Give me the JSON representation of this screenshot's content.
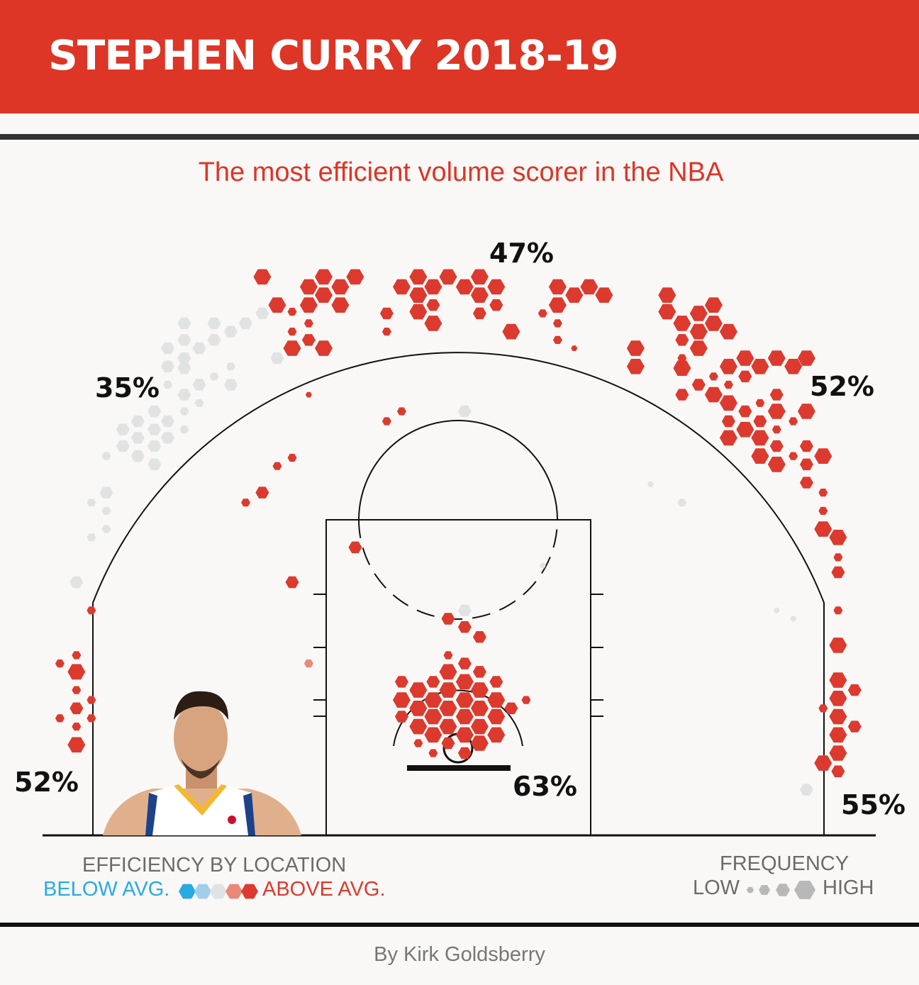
{
  "header": {
    "title": "STEPHEN CURRY 2018-19"
  },
  "subtitle": "The most efficient volume scorer in the NBA",
  "byline": "By Kirk Goldsberry",
  "legend": {
    "efficiency_title": "EFFICIENCY BY LOCATION",
    "below_label": "BELOW AVG.",
    "above_label": "ABOVE AVG.",
    "frequency_title": "FREQUENCY",
    "low_label": "LOW",
    "high_label": "HIGH"
  },
  "colors": {
    "header": "#dd3526",
    "below": "#29abe2",
    "slightly_below": "#a3cdec",
    "average": "#e1e3e3",
    "slightly_above": "#e8897a",
    "above": "#dc3a2e",
    "frequency": "#b8b8b8"
  },
  "chart_data": {
    "type": "hexbin-shot-chart",
    "units": "feet from basket (x: left/right, y: toward half court)",
    "size_scale": "1=low frequency ... 4=high frequency",
    "zone_labels": [
      {
        "zone": "top-of-key three",
        "value": "47%"
      },
      {
        "zone": "left wing three",
        "value": "35%"
      },
      {
        "zone": "right wing three",
        "value": "52%"
      },
      {
        "zone": "left corner three",
        "value": "52%"
      },
      {
        "zone": "restricted area",
        "value": "63%"
      },
      {
        "zone": "right corner three",
        "value": "55%"
      }
    ],
    "hexes": [
      [
        -11.8,
        28.4,
        4,
        "above"
      ],
      [
        -9.0,
        27.8,
        4,
        "above"
      ],
      [
        -8.1,
        28.4,
        4,
        "above"
      ],
      [
        -7.1,
        27.8,
        4,
        "above"
      ],
      [
        -6.2,
        28.4,
        4,
        "above"
      ],
      [
        -8.1,
        27.3,
        4,
        "above"
      ],
      [
        -9.0,
        26.7,
        4,
        "above"
      ],
      [
        -7.1,
        26.7,
        4,
        "above"
      ],
      [
        -10.9,
        26.7,
        4,
        "above"
      ],
      [
        -10.0,
        26.3,
        2,
        "above"
      ],
      [
        -9.0,
        25.6,
        2,
        "above"
      ],
      [
        -10.0,
        25.1,
        2,
        "above"
      ],
      [
        -9.0,
        24.6,
        3,
        "above"
      ],
      [
        -10.0,
        24.1,
        4,
        "above"
      ],
      [
        -8.1,
        24.1,
        4,
        "above"
      ],
      [
        -9.0,
        21.3,
        1,
        "above"
      ],
      [
        -3.4,
        27.8,
        4,
        "above"
      ],
      [
        -2.4,
        28.4,
        4,
        "above"
      ],
      [
        -1.5,
        27.8,
        4,
        "above"
      ],
      [
        -0.6,
        28.4,
        4,
        "above"
      ],
      [
        0.4,
        27.8,
        4,
        "above"
      ],
      [
        1.3,
        28.4,
        4,
        "above"
      ],
      [
        2.3,
        27.8,
        4,
        "above"
      ],
      [
        -2.4,
        27.3,
        4,
        "above"
      ],
      [
        -1.5,
        26.7,
        3,
        "above"
      ],
      [
        -2.4,
        26.3,
        4,
        "above"
      ],
      [
        -1.5,
        25.6,
        4,
        "above"
      ],
      [
        1.3,
        27.3,
        4,
        "above"
      ],
      [
        2.3,
        26.7,
        3,
        "above"
      ],
      [
        1.3,
        26.2,
        3,
        "above"
      ],
      [
        -4.3,
        26.2,
        3,
        "above"
      ],
      [
        -4.3,
        25.1,
        2,
        "above"
      ],
      [
        3.2,
        25.1,
        4,
        "above"
      ],
      [
        6.0,
        27.8,
        4,
        "above"
      ],
      [
        7.0,
        27.3,
        4,
        "above"
      ],
      [
        7.9,
        27.8,
        4,
        "above"
      ],
      [
        8.8,
        27.3,
        4,
        "above"
      ],
      [
        6.0,
        26.7,
        4,
        "above"
      ],
      [
        5.1,
        26.2,
        2,
        "above"
      ],
      [
        6.0,
        25.6,
        2,
        "above"
      ],
      [
        6.0,
        24.6,
        2,
        "above"
      ],
      [
        7.0,
        24.1,
        1,
        "above"
      ],
      [
        12.6,
        27.3,
        4,
        "above"
      ],
      [
        12.6,
        26.3,
        4,
        "above"
      ],
      [
        13.5,
        25.6,
        4,
        "above"
      ],
      [
        14.5,
        26.2,
        4,
        "above"
      ],
      [
        15.4,
        26.7,
        4,
        "above"
      ],
      [
        15.4,
        25.6,
        4,
        "above"
      ],
      [
        16.3,
        25.1,
        4,
        "above"
      ],
      [
        14.5,
        25.1,
        4,
        "above"
      ],
      [
        13.5,
        24.6,
        3,
        "above"
      ],
      [
        14.5,
        24.1,
        4,
        "above"
      ],
      [
        10.7,
        24.1,
        4,
        "above"
      ],
      [
        10.7,
        23.0,
        4,
        "above"
      ],
      [
        13.5,
        23.5,
        2,
        "above"
      ],
      [
        13.5,
        22.9,
        4,
        "above"
      ],
      [
        14.5,
        21.9,
        3,
        "above"
      ],
      [
        13.5,
        21.3,
        3,
        "above"
      ],
      [
        15.4,
        22.4,
        2,
        "above"
      ],
      [
        15.4,
        21.3,
        4,
        "above"
      ],
      [
        16.3,
        23.0,
        4,
        "above"
      ],
      [
        17.3,
        23.5,
        4,
        "above"
      ],
      [
        18.2,
        23.0,
        4,
        "above"
      ],
      [
        19.2,
        23.5,
        4,
        "above"
      ],
      [
        20.2,
        23.0,
        4,
        "above"
      ],
      [
        21.0,
        23.5,
        4,
        "above"
      ],
      [
        17.3,
        22.4,
        3,
        "above"
      ],
      [
        16.3,
        21.9,
        2,
        "above"
      ],
      [
        16.3,
        20.8,
        4,
        "above"
      ],
      [
        17.3,
        20.3,
        3,
        "above"
      ],
      [
        18.2,
        20.8,
        2,
        "above"
      ],
      [
        19.2,
        21.3,
        3,
        "above"
      ],
      [
        19.2,
        20.3,
        4,
        "above"
      ],
      [
        21.0,
        20.3,
        4,
        "above"
      ],
      [
        16.3,
        19.7,
        3,
        "above"
      ],
      [
        17.3,
        19.2,
        4,
        "above"
      ],
      [
        18.2,
        19.7,
        3,
        "above"
      ],
      [
        19.2,
        19.2,
        2,
        "above"
      ],
      [
        20.2,
        19.7,
        2,
        "above"
      ],
      [
        16.3,
        18.7,
        4,
        "above"
      ],
      [
        18.2,
        18.7,
        4,
        "above"
      ],
      [
        19.2,
        18.2,
        3,
        "above"
      ],
      [
        18.2,
        17.6,
        4,
        "above"
      ],
      [
        19.2,
        17.1,
        4,
        "above"
      ],
      [
        20.2,
        17.6,
        2,
        "above"
      ],
      [
        21.0,
        18.2,
        3,
        "above"
      ],
      [
        22.0,
        17.6,
        4,
        "above"
      ],
      [
        21.0,
        17.1,
        3,
        "above"
      ],
      [
        21.0,
        16.0,
        3,
        "above"
      ],
      [
        22.0,
        15.4,
        2,
        "above"
      ],
      [
        22.0,
        14.3,
        2,
        "above"
      ],
      [
        22.0,
        13.2,
        4,
        "above"
      ],
      [
        22.9,
        12.7,
        4,
        "above"
      ],
      [
        22.9,
        11.5,
        2,
        "above"
      ],
      [
        22.9,
        10.6,
        3,
        "above"
      ],
      [
        22.9,
        8.3,
        2,
        "above"
      ],
      [
        22.9,
        6.2,
        4,
        "above"
      ],
      [
        22.9,
        4.1,
        4,
        "above"
      ],
      [
        23.9,
        3.5,
        3,
        "above"
      ],
      [
        22.9,
        3.0,
        4,
        "above"
      ],
      [
        22.0,
        2.4,
        2,
        "above"
      ],
      [
        22.9,
        1.9,
        4,
        "above"
      ],
      [
        23.9,
        1.3,
        3,
        "above"
      ],
      [
        22.9,
        0.8,
        4,
        "above"
      ],
      [
        22.9,
        -0.3,
        4,
        "above"
      ],
      [
        22.0,
        -0.9,
        4,
        "above"
      ],
      [
        22.9,
        -1.4,
        3,
        "above"
      ],
      [
        -22.1,
        8.3,
        2,
        "above"
      ],
      [
        -23.0,
        5.6,
        2,
        "above"
      ],
      [
        -24.0,
        5.1,
        2,
        "above"
      ],
      [
        -23.0,
        4.6,
        4,
        "above"
      ],
      [
        -23.0,
        3.5,
        2,
        "above"
      ],
      [
        -22.1,
        2.9,
        2,
        "above"
      ],
      [
        -23.0,
        2.4,
        3,
        "above"
      ],
      [
        -24.0,
        1.8,
        2,
        "above"
      ],
      [
        -22.1,
        1.8,
        2,
        "above"
      ],
      [
        -23.0,
        1.3,
        2,
        "above"
      ],
      [
        -23.0,
        0.2,
        4,
        "above"
      ],
      [
        -4.3,
        19.7,
        2,
        "above"
      ],
      [
        -3.4,
        20.3,
        2,
        "above"
      ],
      [
        -10.0,
        17.5,
        2,
        "above"
      ],
      [
        -10.9,
        17.0,
        2,
        "above"
      ],
      [
        -11.8,
        15.4,
        3,
        "above"
      ],
      [
        -12.8,
        14.8,
        2,
        "above"
      ],
      [
        -6.2,
        12.1,
        3,
        "above"
      ],
      [
        -10.0,
        10.0,
        3,
        "above"
      ],
      [
        -9.0,
        5.1,
        2,
        "slightly_above"
      ],
      [
        -0.6,
        7.8,
        3,
        "above"
      ],
      [
        0.4,
        7.3,
        3,
        "above"
      ],
      [
        1.3,
        6.7,
        3,
        "above"
      ],
      [
        4.1,
        2.9,
        2,
        "above"
      ],
      [
        3.2,
        2.4,
        3,
        "above"
      ],
      [
        -0.6,
        5.6,
        2,
        "above"
      ],
      [
        0.4,
        5.1,
        3,
        "above"
      ],
      [
        -0.6,
        4.6,
        4,
        "above"
      ],
      [
        1.3,
        4.6,
        3,
        "above"
      ],
      [
        -3.4,
        4.0,
        3,
        "above"
      ],
      [
        -1.5,
        4.0,
        3,
        "above"
      ],
      [
        0.4,
        4.0,
        4,
        "above"
      ],
      [
        2.3,
        4.0,
        3,
        "above"
      ],
      [
        -2.4,
        3.5,
        4,
        "above"
      ],
      [
        -0.6,
        3.5,
        4,
        "above"
      ],
      [
        1.3,
        3.5,
        4,
        "above"
      ],
      [
        -3.4,
        2.9,
        4,
        "above"
      ],
      [
        -1.5,
        2.9,
        4,
        "above"
      ],
      [
        0.4,
        2.9,
        4,
        "above"
      ],
      [
        2.3,
        2.9,
        4,
        "above"
      ],
      [
        -2.4,
        2.4,
        4,
        "above"
      ],
      [
        -0.6,
        2.4,
        4,
        "above"
      ],
      [
        1.3,
        2.4,
        4,
        "above"
      ],
      [
        -3.4,
        1.9,
        3,
        "above"
      ],
      [
        -1.5,
        1.9,
        4,
        "above"
      ],
      [
        0.4,
        1.9,
        4,
        "above"
      ],
      [
        2.3,
        1.9,
        4,
        "above"
      ],
      [
        -2.4,
        1.3,
        4,
        "above"
      ],
      [
        -0.6,
        1.3,
        4,
        "above"
      ],
      [
        1.3,
        1.3,
        4,
        "above"
      ],
      [
        -1.5,
        0.8,
        4,
        "above"
      ],
      [
        0.4,
        0.8,
        4,
        "above"
      ],
      [
        2.3,
        0.8,
        4,
        "above"
      ],
      [
        -2.4,
        0.3,
        2,
        "above"
      ],
      [
        -0.6,
        0.3,
        3,
        "above"
      ],
      [
        1.3,
        0.3,
        4,
        "above"
      ],
      [
        -1.5,
        -0.3,
        2,
        "above"
      ],
      [
        0.4,
        -0.3,
        3,
        "above"
      ],
      [
        -16.5,
        25.6,
        3,
        "average"
      ],
      [
        -17.5,
        24.1,
        3,
        "average"
      ],
      [
        -16.5,
        24.6,
        3,
        "average"
      ],
      [
        -15.6,
        24.1,
        3,
        "average"
      ],
      [
        -14.7,
        24.6,
        3,
        "average"
      ],
      [
        -13.7,
        25.1,
        3,
        "average"
      ],
      [
        -12.8,
        25.6,
        3,
        "average"
      ],
      [
        -11.8,
        26.2,
        3,
        "average"
      ],
      [
        -14.7,
        25.6,
        3,
        "average"
      ],
      [
        -17.5,
        23.0,
        3,
        "average"
      ],
      [
        -16.5,
        23.5,
        3,
        "average"
      ],
      [
        -16.5,
        22.9,
        3,
        "average"
      ],
      [
        -15.6,
        21.9,
        3,
        "average"
      ],
      [
        -16.5,
        21.3,
        3,
        "average"
      ],
      [
        -17.5,
        21.9,
        2,
        "average"
      ],
      [
        -14.7,
        22.4,
        2,
        "average"
      ],
      [
        -13.7,
        21.9,
        3,
        "average"
      ],
      [
        -13.7,
        23.0,
        2,
        "average"
      ],
      [
        -10.9,
        23.5,
        3,
        "average"
      ],
      [
        -15.6,
        20.8,
        2,
        "average"
      ],
      [
        -18.3,
        20.3,
        3,
        "average"
      ],
      [
        -19.3,
        19.7,
        3,
        "average"
      ],
      [
        -17.5,
        19.7,
        3,
        "average"
      ],
      [
        -20.2,
        19.2,
        3,
        "average"
      ],
      [
        -18.3,
        19.2,
        3,
        "average"
      ],
      [
        -19.3,
        18.7,
        3,
        "average"
      ],
      [
        -17.5,
        18.7,
        3,
        "average"
      ],
      [
        -16.5,
        19.2,
        2,
        "average"
      ],
      [
        -20.2,
        18.2,
        3,
        "average"
      ],
      [
        -18.3,
        18.2,
        3,
        "average"
      ],
      [
        -19.3,
        17.6,
        3,
        "average"
      ],
      [
        -21.2,
        17.6,
        2,
        "average"
      ],
      [
        -18.3,
        17.1,
        3,
        "average"
      ],
      [
        -16.5,
        20.3,
        2,
        "average"
      ],
      [
        -21.2,
        15.4,
        3,
        "average"
      ],
      [
        -22.1,
        14.8,
        2,
        "average"
      ],
      [
        -21.2,
        14.3,
        2,
        "average"
      ],
      [
        -21.2,
        13.2,
        2,
        "average"
      ],
      [
        -22.1,
        12.7,
        2,
        "average"
      ],
      [
        -23.0,
        10.0,
        3,
        "average"
      ],
      [
        0.4,
        20.3,
        3,
        "average"
      ],
      [
        11.6,
        15.9,
        1,
        "average"
      ],
      [
        13.5,
        14.8,
        2,
        "average"
      ],
      [
        5.1,
        11.0,
        1,
        "average"
      ],
      [
        0.4,
        8.3,
        3,
        "average"
      ],
      [
        19.2,
        8.3,
        1,
        "average"
      ],
      [
        20.2,
        7.8,
        1,
        "average"
      ],
      [
        21.0,
        -2.5,
        3,
        "average"
      ]
    ]
  }
}
